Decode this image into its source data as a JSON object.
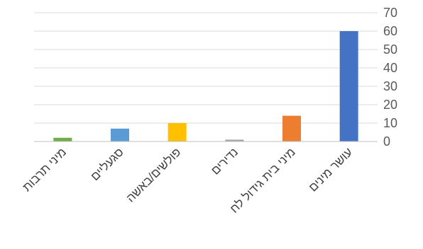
{
  "chart_data": {
    "type": "bar",
    "title": "",
    "xlabel": "",
    "ylabel": "",
    "y_axis_side": "right",
    "ylim": [
      0,
      70
    ],
    "y_ticks": [
      "0",
      "10",
      "20",
      "30",
      "40",
      "50",
      "60",
      "70"
    ],
    "grid": true,
    "legend": "none",
    "categories": [
      "מיני תרבות",
      "סגעליים",
      "פולשים/באשה",
      "נדירים",
      "מיני בית גידול לח",
      "עושר מינים"
    ],
    "values": [
      2,
      7,
      10,
      1,
      14,
      60
    ],
    "colors": [
      "#70AD47",
      "#5B9BD5",
      "#FFC000",
      "#A5A5A5",
      "#ED7D31",
      "#4472C4"
    ],
    "gridline_color": "#D9D9D9",
    "axis_color": "#BFBFBF"
  }
}
